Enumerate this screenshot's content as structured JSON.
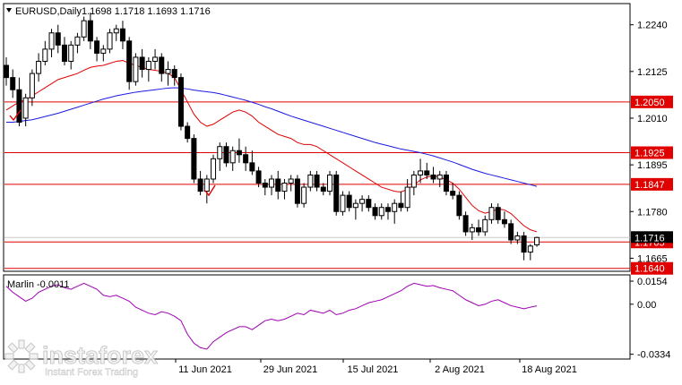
{
  "header": {
    "symbol": "EURUSD,Daily",
    "ohlc": "1.1698 1.1718 1.1693 1.1716"
  },
  "indicator": {
    "label": "Marlin -0.0011"
  },
  "watermark": {
    "brand": "instaforex",
    "tagline": "Instant Forex Trading"
  },
  "colors": {
    "background": "#ffffff",
    "candle": "#000000",
    "fast_ma": "#e00000",
    "slow_ma": "#1a1ae0",
    "level_line": "#e00000",
    "level_tag": "#e00000",
    "oscillator": "#a000b4",
    "checkmark": "#e00000"
  },
  "chart_data": [
    {
      "type": "candlestick",
      "title": "EURUSD,Daily",
      "x_ticks": [
        "11 Jun 2021",
        "29 Jun 2021",
        "15 Jul 2021",
        "2 Aug 2021",
        "18 Aug 2021"
      ],
      "y_ticks": [
        "1.2240",
        "1.2125",
        "1.2010",
        "1.1895",
        "1.1780",
        "1.1665"
      ],
      "ylim": [
        1.1635,
        1.229
      ],
      "levels": [
        {
          "value": 1.205,
          "label": "1.2050"
        },
        {
          "value": 1.1925,
          "label": "1.1925"
        },
        {
          "value": 1.1847,
          "label": "1.1847"
        },
        {
          "value": 1.1705,
          "label": "1.1705"
        },
        {
          "value": 1.164,
          "label": "1.1640"
        }
      ],
      "last_price": {
        "value": 1.1716,
        "label": "1.1716"
      },
      "series": [
        {
          "name": "",
          "kind": "moving-average-fast"
        },
        {
          "name": "",
          "kind": "moving-average-slow"
        }
      ],
      "candles": [
        [
          1.214,
          1.216,
          1.209,
          1.211
        ],
        [
          1.211,
          1.213,
          1.206,
          1.208
        ],
        [
          1.208,
          1.211,
          1.199,
          1.2
        ],
        [
          1.201,
          1.207,
          1.199,
          1.206
        ],
        [
          1.206,
          1.213,
          1.204,
          1.212
        ],
        [
          1.212,
          1.217,
          1.21,
          1.215
        ],
        [
          1.215,
          1.22,
          1.214,
          1.218
        ],
        [
          1.218,
          1.223,
          1.216,
          1.222
        ],
        [
          1.222,
          1.224,
          1.217,
          1.219
        ],
        [
          1.219,
          1.221,
          1.214,
          1.215
        ],
        [
          1.215,
          1.22,
          1.213,
          1.219
        ],
        [
          1.219,
          1.222,
          1.217,
          1.221
        ],
        [
          1.221,
          1.226,
          1.22,
          1.225
        ],
        [
          1.225,
          1.227,
          1.218,
          1.22
        ],
        [
          1.22,
          1.221,
          1.215,
          1.217
        ],
        [
          1.217,
          1.219,
          1.215,
          1.218
        ],
        [
          1.218,
          1.223,
          1.217,
          1.222
        ],
        [
          1.222,
          1.224,
          1.22,
          1.223
        ],
        [
          1.223,
          1.225,
          1.218,
          1.22
        ],
        [
          1.22,
          1.221,
          1.208,
          1.21
        ],
        [
          1.21,
          1.217,
          1.209,
          1.216
        ],
        [
          1.216,
          1.218,
          1.211,
          1.213
        ],
        [
          1.213,
          1.216,
          1.21,
          1.215
        ],
        [
          1.215,
          1.218,
          1.213,
          1.216
        ],
        [
          1.216,
          1.217,
          1.21,
          1.212
        ],
        [
          1.212,
          1.215,
          1.209,
          1.213
        ],
        [
          1.213,
          1.214,
          1.209,
          1.211
        ],
        [
          1.211,
          1.212,
          1.198,
          1.199
        ],
        [
          1.199,
          1.2,
          1.195,
          1.196
        ],
        [
          1.196,
          1.197,
          1.185,
          1.186
        ],
        [
          1.186,
          1.188,
          1.182,
          1.183
        ],
        [
          1.183,
          1.187,
          1.18,
          1.186
        ],
        [
          1.186,
          1.192,
          1.185,
          1.191
        ],
        [
          1.191,
          1.195,
          1.188,
          1.194
        ],
        [
          1.194,
          1.195,
          1.189,
          1.19
        ],
        [
          1.19,
          1.194,
          1.188,
          1.193
        ],
        [
          1.193,
          1.196,
          1.19,
          1.192
        ],
        [
          1.192,
          1.194,
          1.188,
          1.19
        ],
        [
          1.19,
          1.193,
          1.187,
          1.188
        ],
        [
          1.188,
          1.189,
          1.184,
          1.185
        ],
        [
          1.185,
          1.186,
          1.182,
          1.184
        ],
        [
          1.184,
          1.187,
          1.182,
          1.186
        ],
        [
          1.186,
          1.188,
          1.181,
          1.183
        ],
        [
          1.183,
          1.186,
          1.181,
          1.185
        ],
        [
          1.185,
          1.187,
          1.183,
          1.186
        ],
        [
          1.186,
          1.187,
          1.179,
          1.18
        ],
        [
          1.18,
          1.185,
          1.179,
          1.184
        ],
        [
          1.184,
          1.188,
          1.183,
          1.187
        ],
        [
          1.187,
          1.188,
          1.183,
          1.184
        ],
        [
          1.184,
          1.185,
          1.182,
          1.183
        ],
        [
          1.183,
          1.188,
          1.182,
          1.187
        ],
        [
          1.187,
          1.188,
          1.177,
          1.178
        ],
        [
          1.178,
          1.183,
          1.177,
          1.182
        ],
        [
          1.182,
          1.183,
          1.178,
          1.179
        ],
        [
          1.179,
          1.181,
          1.176,
          1.18
        ],
        [
          1.18,
          1.182,
          1.178,
          1.181
        ],
        [
          1.181,
          1.182,
          1.178,
          1.179
        ],
        [
          1.179,
          1.18,
          1.176,
          1.177
        ],
        [
          1.177,
          1.18,
          1.176,
          1.179
        ],
        [
          1.179,
          1.18,
          1.176,
          1.178
        ],
        [
          1.178,
          1.181,
          1.175,
          1.18
        ],
        [
          1.18,
          1.183,
          1.178,
          1.179
        ],
        [
          1.179,
          1.186,
          1.178,
          1.184
        ],
        [
          1.184,
          1.188,
          1.182,
          1.187
        ],
        [
          1.187,
          1.191,
          1.185,
          1.188
        ],
        [
          1.188,
          1.19,
          1.186,
          1.187
        ],
        [
          1.187,
          1.189,
          1.185,
          1.186
        ],
        [
          1.186,
          1.188,
          1.184,
          1.187
        ],
        [
          1.187,
          1.188,
          1.182,
          1.183
        ],
        [
          1.183,
          1.185,
          1.181,
          1.182
        ],
        [
          1.182,
          1.183,
          1.176,
          1.177
        ],
        [
          1.177,
          1.178,
          1.172,
          1.173
        ],
        [
          1.173,
          1.175,
          1.171,
          1.174
        ],
        [
          1.174,
          1.176,
          1.172,
          1.173
        ],
        [
          1.173,
          1.177,
          1.172,
          1.176
        ],
        [
          1.176,
          1.18,
          1.175,
          1.179
        ],
        [
          1.179,
          1.18,
          1.175,
          1.176
        ],
        [
          1.176,
          1.178,
          1.174,
          1.175
        ],
        [
          1.175,
          1.176,
          1.17,
          1.171
        ],
        [
          1.171,
          1.173,
          1.17,
          1.172
        ],
        [
          1.172,
          1.173,
          1.166,
          1.168
        ],
        [
          1.168,
          1.17,
          1.166,
          1.1695
        ],
        [
          1.1698,
          1.1718,
          1.1693,
          1.1716
        ]
      ],
      "fast_ma": [
        1.203,
        1.204,
        1.205,
        1.2055,
        1.2065,
        1.2075,
        1.2085,
        1.2095,
        1.2105,
        1.211,
        1.2115,
        1.212,
        1.2128,
        1.2135,
        1.2138,
        1.214,
        1.2145,
        1.215,
        1.2152,
        1.2145,
        1.214,
        1.2135,
        1.213,
        1.2128,
        1.2125,
        1.212,
        1.211,
        1.208,
        1.205,
        1.202,
        1.2,
        1.199,
        1.1995,
        1.2005,
        1.2015,
        1.2025,
        1.203,
        1.2025,
        1.2015,
        1.2,
        1.199,
        1.198,
        1.197,
        1.1965,
        1.196,
        1.195,
        1.1945,
        1.1945,
        1.194,
        1.193,
        1.192,
        1.191,
        1.19,
        1.189,
        1.188,
        1.187,
        1.186,
        1.185,
        1.184,
        1.1835,
        1.183,
        1.1828,
        1.1835,
        1.1845,
        1.1858,
        1.1865,
        1.1868,
        1.1865,
        1.1858,
        1.185,
        1.1835,
        1.1815,
        1.1795,
        1.1782,
        1.1776,
        1.178,
        1.1786,
        1.1784,
        1.1775,
        1.176,
        1.1745,
        1.1735,
        1.173
      ],
      "slow_ma": [
        1.2,
        1.2,
        1.2002,
        1.2004,
        1.2006,
        1.201,
        1.2014,
        1.2018,
        1.2022,
        1.2027,
        1.2032,
        1.2037,
        1.2042,
        1.2047,
        1.2052,
        1.2057,
        1.2061,
        1.2065,
        1.2068,
        1.2071,
        1.2074,
        1.2076,
        1.2078,
        1.208,
        1.2082,
        1.2084,
        1.2085,
        1.2084,
        1.2082,
        1.2079,
        1.2077,
        1.2075,
        1.2073,
        1.207,
        1.2066,
        1.2062,
        1.2058,
        1.2054,
        1.2049,
        1.2044,
        1.2038,
        1.2033,
        1.2027,
        1.2021,
        1.2015,
        1.201,
        1.2005,
        1.2,
        1.1995,
        1.199,
        1.1985,
        1.198,
        1.1975,
        1.197,
        1.1965,
        1.196,
        1.1955,
        1.195,
        1.1946,
        1.1942,
        1.1938,
        1.1934,
        1.1931,
        1.1928,
        1.1925,
        1.1921,
        1.1917,
        1.1912,
        1.1907,
        1.1902,
        1.1896,
        1.189,
        1.1884,
        1.1879,
        1.1874,
        1.187,
        1.1866,
        1.1862,
        1.1858,
        1.1854,
        1.185,
        1.1846,
        1.1842
      ]
    },
    {
      "type": "line",
      "title": "Marlin -0.0011",
      "y_ticks": [
        "0.0154",
        "0.00",
        "-0.0334"
      ],
      "ylim": [
        -0.036,
        0.019
      ],
      "series": [
        {
          "name": "",
          "values": [
            0.012,
            0.008,
            0.005,
            0.002,
            0.004,
            0.008,
            0.01,
            0.012,
            0.013,
            0.011,
            0.01,
            0.012,
            0.014,
            0.012,
            0.01,
            0.006,
            0.005,
            0.006,
            0.004,
            0.002,
            -0.002,
            -0.004,
            -0.006,
            -0.007,
            -0.005,
            -0.006,
            -0.008,
            -0.011,
            -0.02,
            -0.026,
            -0.029,
            -0.03,
            -0.025,
            -0.022,
            -0.019,
            -0.017,
            -0.015,
            -0.015,
            -0.017,
            -0.014,
            -0.011,
            -0.01,
            -0.011,
            -0.01,
            -0.008,
            -0.006,
            -0.007,
            -0.004,
            -0.005,
            -0.006,
            -0.004,
            -0.007,
            -0.006,
            -0.004,
            -0.003,
            -0.001,
            0.001,
            0.002,
            0.003,
            0.005,
            0.007,
            0.009,
            0.012,
            0.014,
            0.013,
            0.012,
            0.0125,
            0.011,
            0.01,
            0.009,
            0.006,
            0.003,
            0.001,
            -0.001,
            0.0,
            0.002,
            0.003,
            0.001,
            -0.001,
            -0.002,
            -0.003,
            -0.002,
            -0.0011
          ]
        }
      ]
    }
  ]
}
